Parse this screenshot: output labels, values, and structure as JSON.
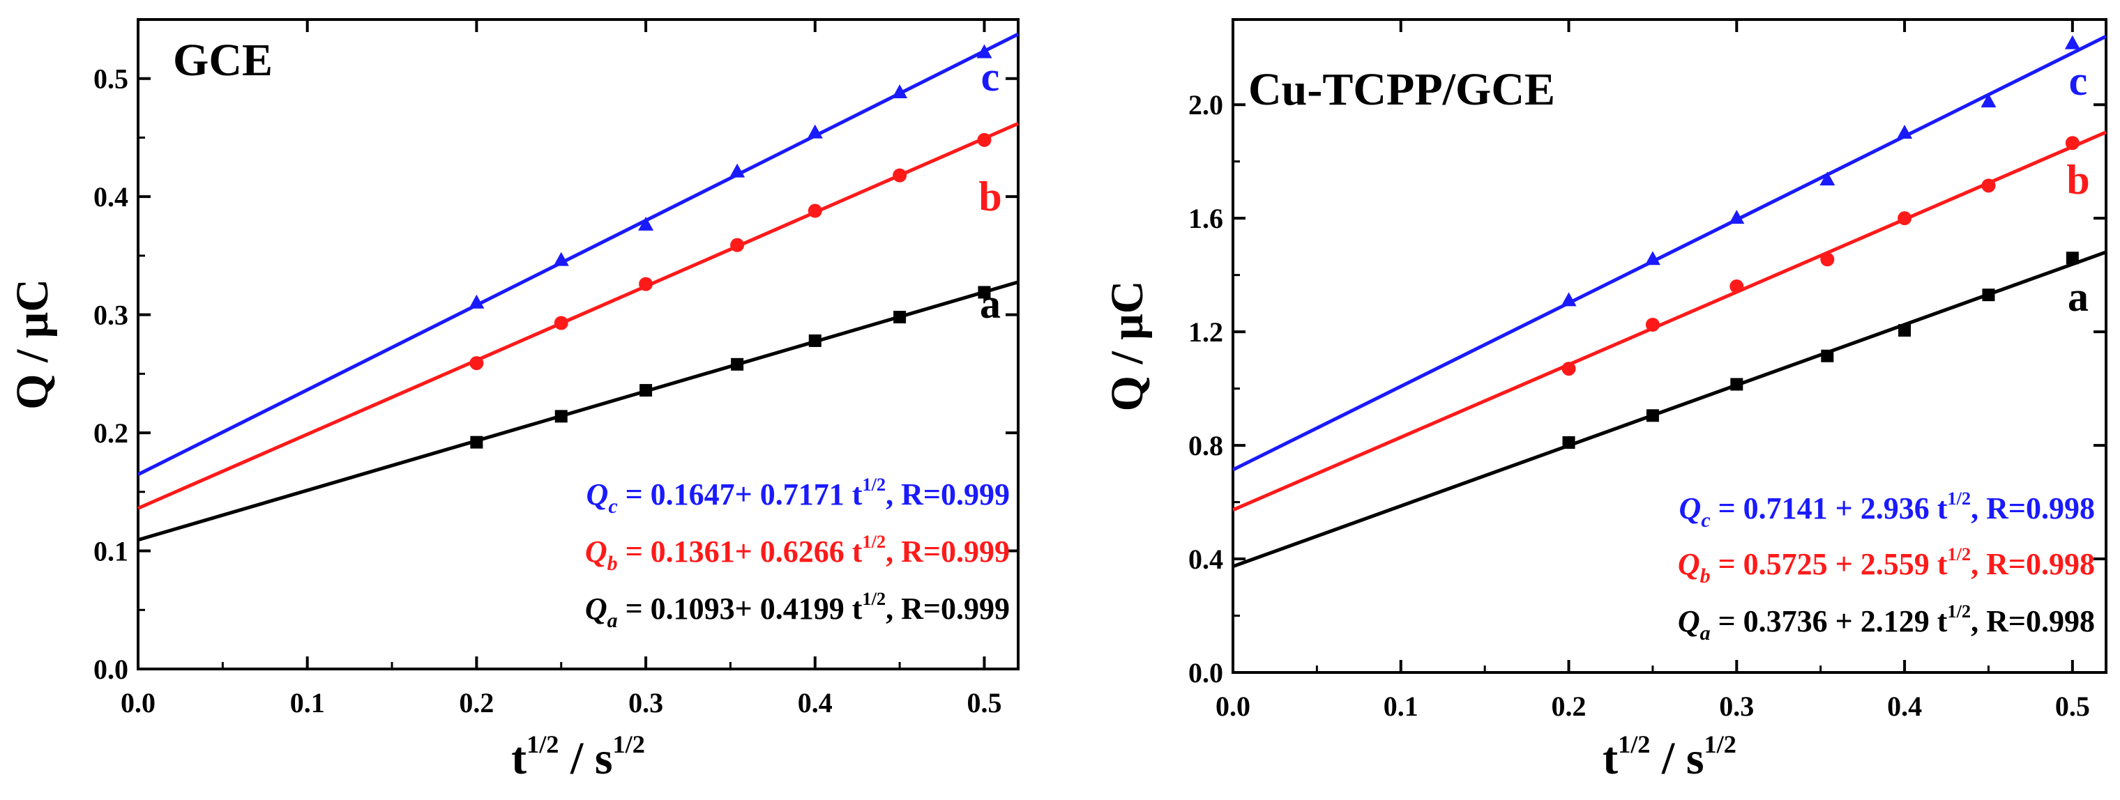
{
  "colors": {
    "a": "#000000",
    "b": "#ff1a1a",
    "c": "#1a1aff",
    "axis": "#000000"
  },
  "chart_data": [
    {
      "type": "scatter",
      "title": "GCE",
      "xlabel": {
        "base": "t",
        "exp": "1/2",
        "sep": " / ",
        "unit": "s",
        "unit_exp": "1/2"
      },
      "ylabel": "Q / μC",
      "xlim": [
        0.0,
        0.52
      ],
      "ylim": [
        0.0,
        0.55
      ],
      "xticks": [
        "0.0",
        "0.1",
        "0.2",
        "0.3",
        "0.4",
        "0.5"
      ],
      "xtick_values": [
        0.0,
        0.1,
        0.2,
        0.3,
        0.4,
        0.5
      ],
      "yticks": [
        "0.0",
        "0.1",
        "0.2",
        "0.3",
        "0.4",
        "0.5"
      ],
      "ytick_values": [
        0.0,
        0.1,
        0.2,
        0.3,
        0.4,
        0.5
      ],
      "grid": false,
      "series": [
        {
          "name": "a",
          "color_key": "a",
          "marker": "square",
          "x": [
            0.2,
            0.25,
            0.3,
            0.354,
            0.4,
            0.45,
            0.5
          ],
          "y": [
            0.192,
            0.214,
            0.236,
            0.258,
            0.278,
            0.298,
            0.319
          ],
          "fit": {
            "intercept": 0.1093,
            "slope": 0.4199
          },
          "equation": {
            "sym": "Q",
            "sub": "a",
            "body": " = 0.1093+ 0.4199 t",
            "exp": "1/2",
            "tail": ", R=0.999"
          }
        },
        {
          "name": "b",
          "color_key": "b",
          "marker": "circle",
          "x": [
            0.2,
            0.25,
            0.3,
            0.354,
            0.4,
            0.45,
            0.5
          ],
          "y": [
            0.259,
            0.293,
            0.326,
            0.359,
            0.388,
            0.418,
            0.448
          ],
          "fit": {
            "intercept": 0.1361,
            "slope": 0.6266
          },
          "equation": {
            "sym": "Q",
            "sub": "b",
            "body": " = 0.1361+ 0.6266 t",
            "exp": "1/2",
            "tail": ", R=0.999"
          }
        },
        {
          "name": "c",
          "color_key": "c",
          "marker": "triangle",
          "x": [
            0.2,
            0.25,
            0.3,
            0.354,
            0.4,
            0.45,
            0.5
          ],
          "y": [
            0.31,
            0.346,
            0.376,
            0.421,
            0.454,
            0.488,
            0.522
          ],
          "fit": {
            "intercept": 0.1647,
            "slope": 0.7171
          },
          "equation": {
            "sym": "Q",
            "sub": "c",
            "body": " = 0.1647+ 0.7171 t",
            "exp": "1/2",
            "tail": ", R=0.999"
          }
        }
      ]
    },
    {
      "type": "scatter",
      "title": "Cu-TCPP/GCE",
      "xlabel": {
        "base": "t",
        "exp": "1/2",
        "sep": " / ",
        "unit": "s",
        "unit_exp": "1/2"
      },
      "ylabel": "Q / μC",
      "xlim": [
        0.0,
        0.52
      ],
      "ylim": [
        0.0,
        2.3
      ],
      "xticks": [
        "0.0",
        "0.1",
        "0.2",
        "0.3",
        "0.4",
        "0.5"
      ],
      "xtick_values": [
        0.0,
        0.1,
        0.2,
        0.3,
        0.4,
        0.5
      ],
      "yticks": [
        "0.0",
        "0.4",
        "0.8",
        "1.2",
        "1.6",
        "2.0"
      ],
      "ytick_values": [
        0.0,
        0.4,
        0.8,
        1.2,
        1.6,
        2.0
      ],
      "grid": false,
      "series": [
        {
          "name": "a",
          "color_key": "a",
          "marker": "square",
          "x": [
            0.2,
            0.25,
            0.3,
            0.354,
            0.4,
            0.45,
            0.5
          ],
          "y": [
            0.81,
            0.905,
            1.015,
            1.115,
            1.205,
            1.33,
            1.46
          ],
          "fit": {
            "intercept": 0.3736,
            "slope": 2.129
          },
          "equation": {
            "sym": "Q",
            "sub": "a",
            "body": " = 0.3736 + 2.129 t",
            "exp": "1/2",
            "tail": ", R=0.998"
          }
        },
        {
          "name": "b",
          "color_key": "b",
          "marker": "circle",
          "x": [
            0.2,
            0.25,
            0.3,
            0.354,
            0.4,
            0.45,
            0.5
          ],
          "y": [
            1.07,
            1.225,
            1.36,
            1.455,
            1.6,
            1.715,
            1.865
          ],
          "fit": {
            "intercept": 0.5725,
            "slope": 2.559
          },
          "equation": {
            "sym": "Q",
            "sub": "b",
            "body": " = 0.5725 + 2.559 t",
            "exp": "1/2",
            "tail": ", R=0.998"
          }
        },
        {
          "name": "c",
          "color_key": "c",
          "marker": "triangle",
          "x": [
            0.2,
            0.25,
            0.3,
            0.354,
            0.4,
            0.45,
            0.5
          ],
          "y": [
            1.31,
            1.455,
            1.6,
            1.735,
            1.9,
            2.01,
            2.215
          ],
          "fit": {
            "intercept": 0.7141,
            "slope": 2.936
          },
          "equation": {
            "sym": "Q",
            "sub": "c",
            "body": " = 0.7141 + 2.936 t",
            "exp": "1/2",
            "tail": ", R=0.998"
          }
        }
      ]
    }
  ]
}
